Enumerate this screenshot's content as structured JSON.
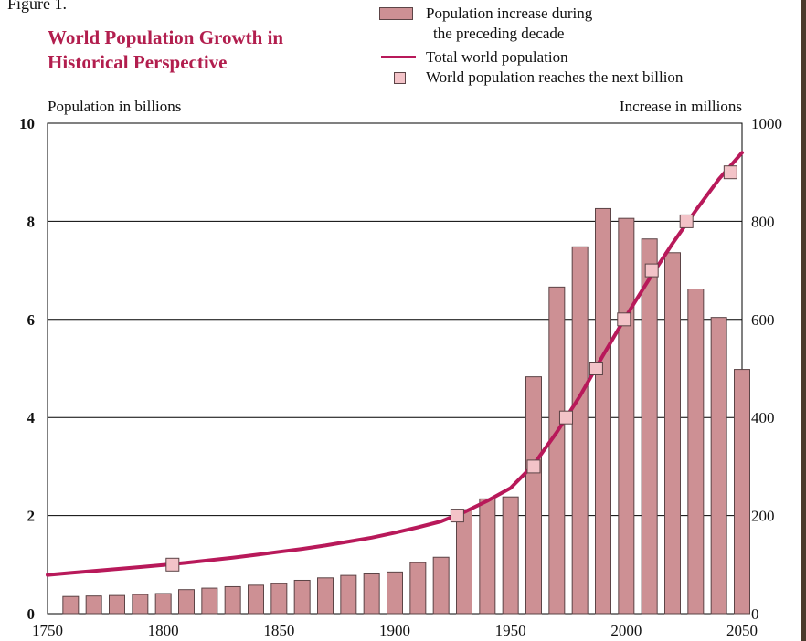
{
  "figure": {
    "label": "Figure 1.",
    "title_lines": [
      "World Population Growth in",
      "Historical Perspective"
    ]
  },
  "legend": {
    "bar_label_lines": [
      "Population increase during",
      "the preceding decade"
    ],
    "line_label": "Total world population",
    "marker_label": "World population reaches the next billion"
  },
  "colors": {
    "bar_fill": "#cd9094",
    "bar_stroke": "#5c4446",
    "line": "#b8195a",
    "marker_fill": "#f3c3c8",
    "marker_stroke": "#5c4446",
    "title": "#b21e4e",
    "grid": "#000000"
  },
  "chart_data": {
    "type": "bar",
    "combo": "bar+line",
    "grid": "horizontal",
    "legend_position": "top-right",
    "xlim": [
      1750,
      2050
    ],
    "x_ticks": [
      "1750",
      "1800",
      "1850",
      "1900",
      "1950",
      "2000",
      "2050"
    ],
    "y_left": {
      "label": "Population in billions",
      "lim": [
        0,
        10
      ],
      "ticks": [
        "0",
        "2",
        "4",
        "6",
        "8",
        "10"
      ]
    },
    "y_right": {
      "label": "Increase in millions",
      "lim": [
        0,
        1000
      ],
      "ticks": [
        "0",
        "200",
        "400",
        "600",
        "800",
        "1000"
      ]
    },
    "bars": {
      "name": "Population increase during the preceding decade",
      "x": [
        1760,
        1770,
        1780,
        1790,
        1800,
        1810,
        1820,
        1830,
        1840,
        1850,
        1860,
        1870,
        1880,
        1890,
        1900,
        1910,
        1920,
        1930,
        1940,
        1950,
        1960,
        1970,
        1980,
        1990,
        2000,
        2010,
        2020,
        2030,
        2040,
        2050
      ],
      "values": [
        35,
        36,
        37,
        39,
        41,
        49,
        52,
        55,
        58,
        61,
        68,
        73,
        78,
        81,
        85,
        104,
        115,
        212,
        234,
        238,
        483,
        666,
        748,
        826,
        806,
        764,
        736,
        662,
        604,
        498
      ]
    },
    "line": {
      "name": "Total world population",
      "x": [
        1750,
        1760,
        1770,
        1780,
        1790,
        1800,
        1810,
        1820,
        1830,
        1840,
        1850,
        1860,
        1870,
        1880,
        1890,
        1900,
        1910,
        1920,
        1930,
        1940,
        1950,
        1960,
        1970,
        1980,
        1990,
        2000,
        2010,
        2020,
        2030,
        2040,
        2050
      ],
      "y": [
        0.79,
        0.83,
        0.87,
        0.91,
        0.95,
        0.99,
        1.04,
        1.09,
        1.14,
        1.2,
        1.26,
        1.32,
        1.39,
        1.47,
        1.55,
        1.65,
        1.76,
        1.88,
        2.07,
        2.3,
        2.56,
        3.04,
        3.7,
        4.44,
        5.27,
        6.07,
        6.83,
        7.55,
        8.22,
        8.86,
        9.4
      ]
    },
    "markers": {
      "name": "World population reaches the next billion",
      "x": [
        1804,
        1927,
        1960,
        1974,
        1987,
        1999,
        2011,
        2026,
        2045
      ],
      "y": [
        1,
        2,
        3,
        4,
        5,
        6,
        7,
        8,
        9
      ]
    }
  }
}
